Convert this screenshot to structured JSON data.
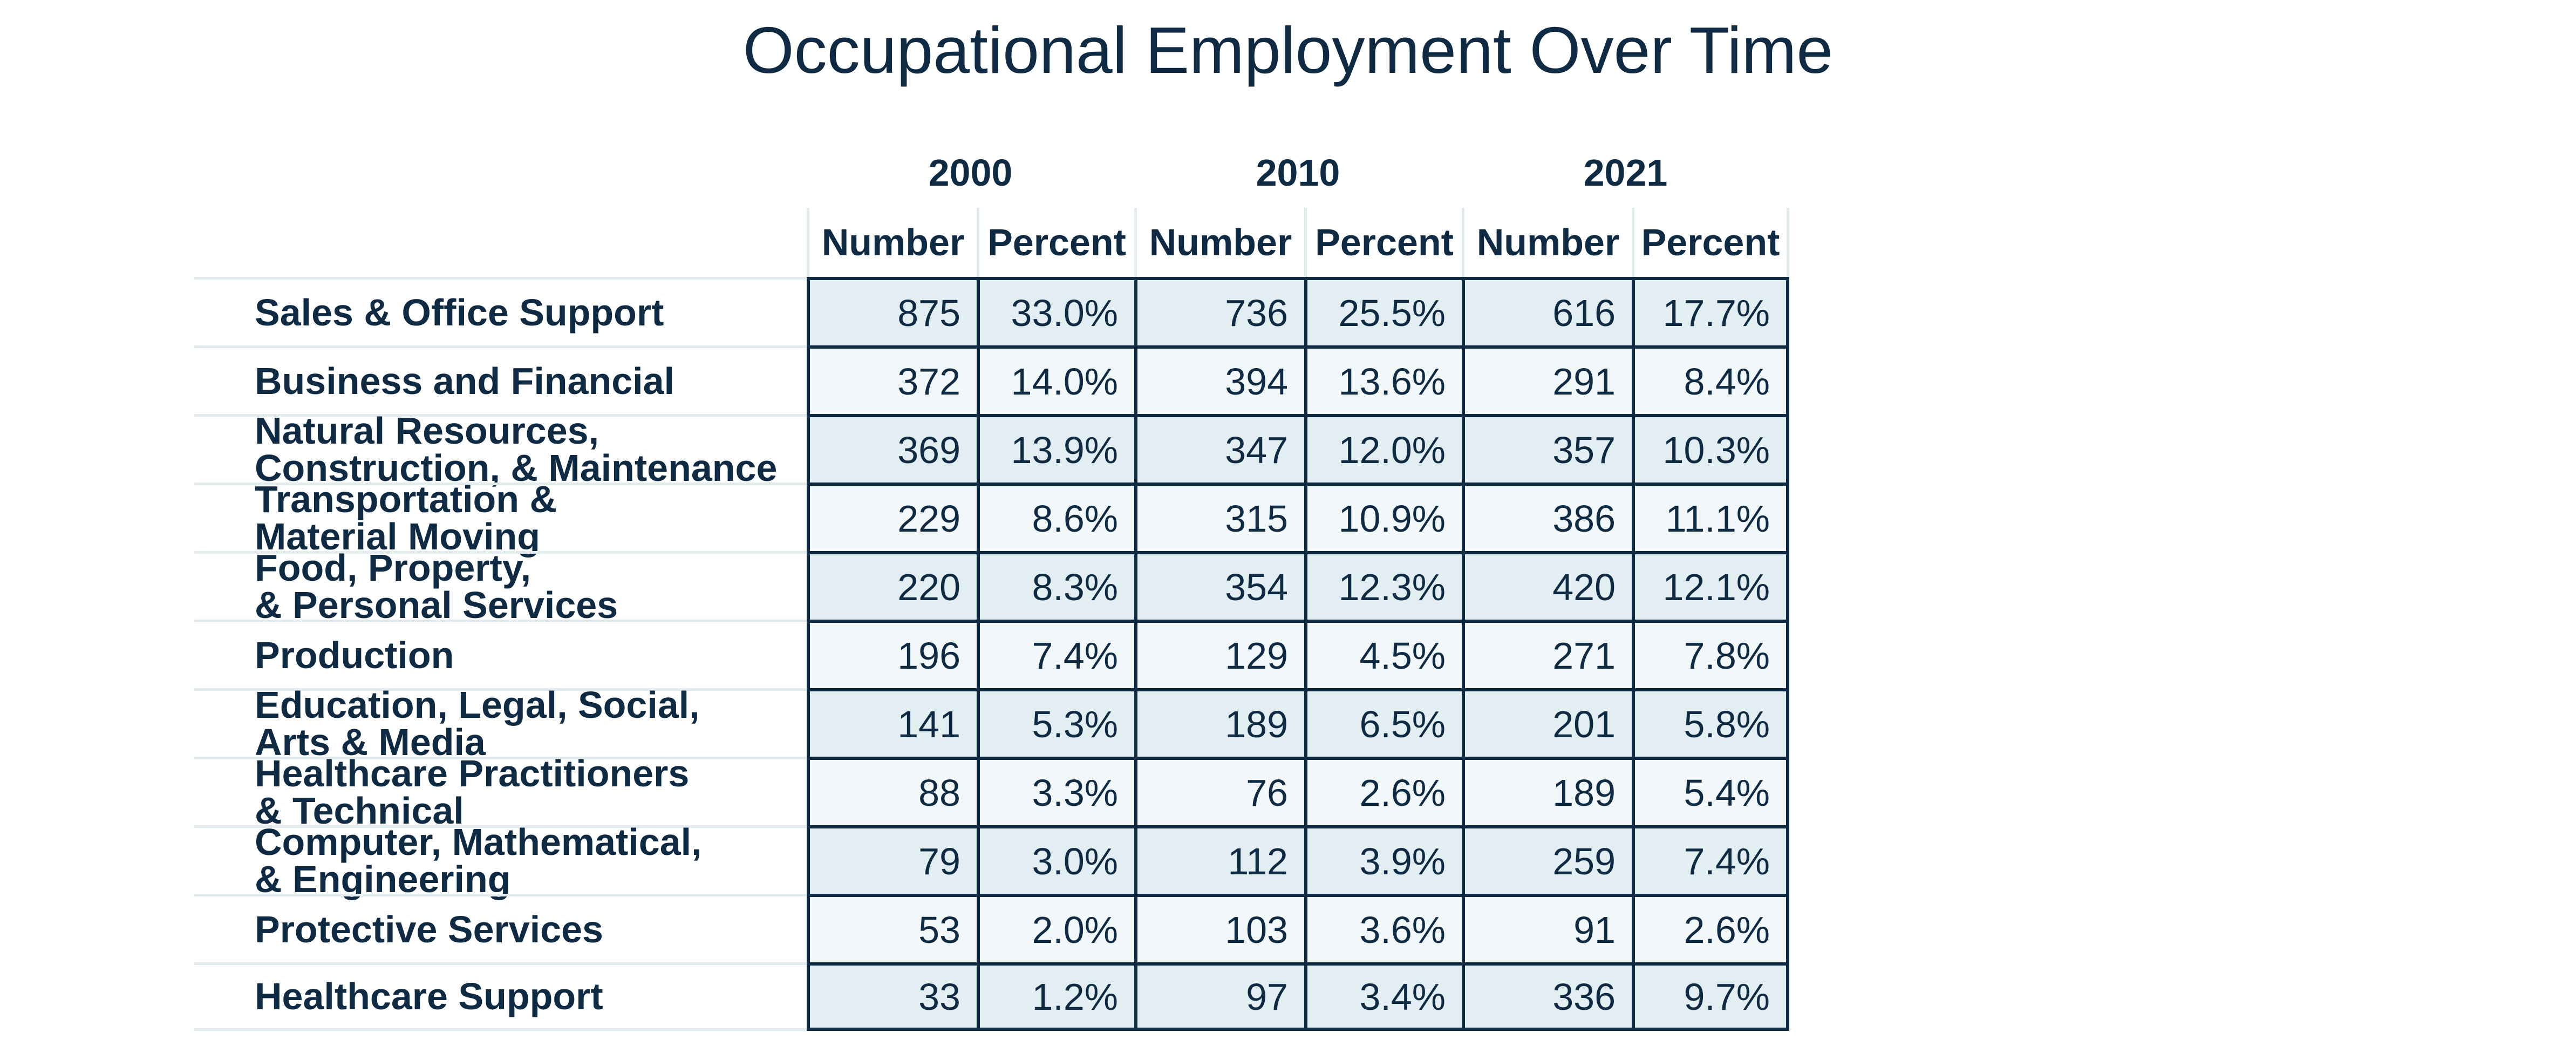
{
  "chart_data": {
    "type": "table",
    "title": "Occupational Employment Over Time",
    "years": [
      "2000",
      "2010",
      "2021"
    ],
    "subheaders": [
      "Number",
      "Percent"
    ],
    "rows": [
      {
        "label": "Sales & Office Support",
        "values": [
          "875",
          "33.0%",
          "736",
          "25.5%",
          "616",
          "17.7%"
        ]
      },
      {
        "label": "Business and Financial",
        "values": [
          "372",
          "14.0%",
          "394",
          "13.6%",
          "291",
          "8.4%"
        ]
      },
      {
        "label": "Natural Resources,\nConstruction, & Maintenance",
        "values": [
          "369",
          "13.9%",
          "347",
          "12.0%",
          "357",
          "10.3%"
        ]
      },
      {
        "label": "Transportation &\nMaterial Moving",
        "values": [
          "229",
          "8.6%",
          "315",
          "10.9%",
          "386",
          "11.1%"
        ]
      },
      {
        "label": "Food, Property,\n& Personal Services",
        "values": [
          "220",
          "8.3%",
          "354",
          "12.3%",
          "420",
          "12.1%"
        ]
      },
      {
        "label": "Production",
        "values": [
          "196",
          "7.4%",
          "129",
          "4.5%",
          "271",
          "7.8%"
        ]
      },
      {
        "label": "Education, Legal, Social,\nArts & Media",
        "values": [
          "141",
          "5.3%",
          "189",
          "6.5%",
          "201",
          "5.8%"
        ]
      },
      {
        "label": "Healthcare Practitioners\n& Technical",
        "values": [
          "88",
          "3.3%",
          "76",
          "2.6%",
          "189",
          "5.4%"
        ]
      },
      {
        "label": "Computer, Mathematical,\n& Engineering",
        "values": [
          "79",
          "3.0%",
          "112",
          "3.9%",
          "259",
          "7.4%"
        ]
      },
      {
        "label": "Protective Services",
        "values": [
          "53",
          "2.0%",
          "103",
          "3.6%",
          "91",
          "2.6%"
        ]
      },
      {
        "label": "Healthcare Support",
        "values": [
          "33",
          "1.2%",
          "97",
          "3.4%",
          "336",
          "9.7%"
        ]
      }
    ]
  },
  "colors": {
    "text": "#0f2a43",
    "row_shade_dark": "#e2eef2",
    "row_shade_light": "#f2f8fa",
    "grid_light": "#e2ecef",
    "grid_dark": "#0f2a43"
  }
}
